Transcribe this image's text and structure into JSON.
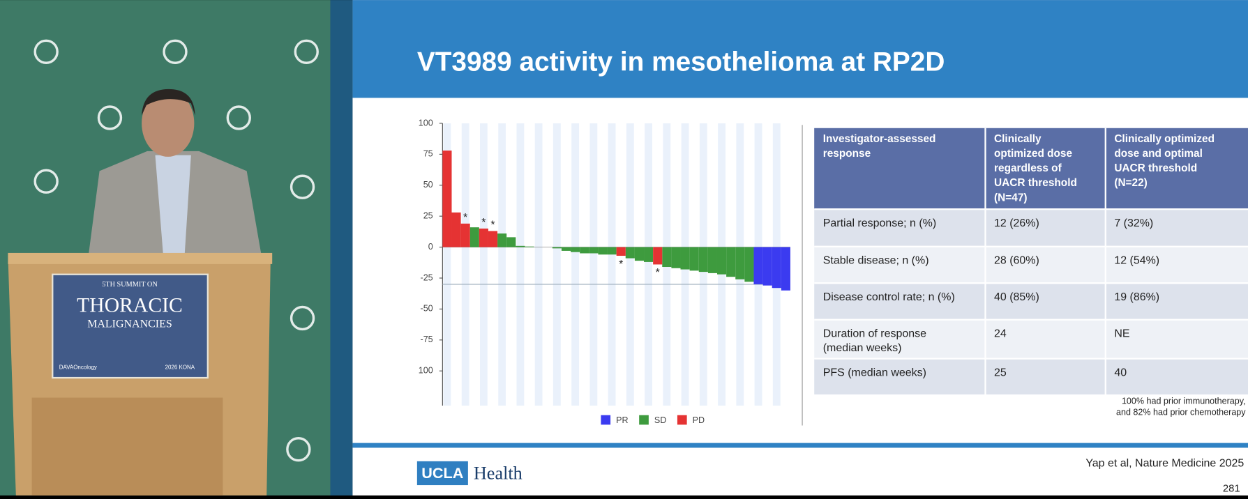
{
  "slide": {
    "title": "VT3989 activity in mesothelioma at RP2D",
    "table": {
      "header": [
        [
          "Investigator-assessed",
          "response"
        ],
        [
          "Clinically",
          "optimized dose",
          "regardless of",
          "UACR threshold",
          "(N=47)"
        ],
        [
          "Clinically optimized",
          "dose and optimal",
          "UACR threshold",
          "(N=22)"
        ]
      ],
      "rows": [
        [
          "Partial response; n (%)",
          "12 (26%)",
          "7 (32%)"
        ],
        [
          "Stable disease; n (%)",
          "28 (60%)",
          "12 (54%)"
        ],
        [
          "Disease control rate; n (%)",
          "40 (85%)",
          "19 (86%)"
        ],
        [
          [
            "Duration of response",
            "(median weeks)"
          ],
          "24",
          "NE"
        ],
        [
          "PFS (median weeks)",
          "25",
          "40"
        ]
      ]
    },
    "footnote": [
      "100% had prior immunotherapy,",
      "and 82% had prior chemotherapy"
    ],
    "citation": "Yap et al, Nature Medicine 2025",
    "page_number": "281",
    "logo": {
      "mark": "UCLA",
      "text": "Health"
    }
  },
  "podium": {
    "line1": "5TH SUMMIT ON",
    "line2": "THORACIC",
    "line3": "MALIGNANCIES",
    "sponsor": "DAVAOncology",
    "event": "2026 KONA"
  },
  "chart_data": {
    "type": "bar",
    "grid": false,
    "ylim": [
      -128,
      100
    ],
    "yticks": [
      100,
      75,
      50,
      25,
      0,
      -25,
      -50,
      -75,
      {
        "value": -100,
        "label": "100"
      }
    ],
    "reference_line": -30,
    "annotations": [
      "*",
      "*",
      "*",
      "*",
      "*"
    ],
    "series": [
      {
        "name": "PR",
        "color": "#3b3bf0",
        "values": [
          null,
          null,
          null,
          null,
          null,
          null,
          null,
          null,
          null,
          null,
          null,
          null,
          null,
          null,
          null,
          null,
          null,
          null,
          null,
          null,
          null,
          null,
          null,
          null,
          null,
          null,
          null,
          null,
          null,
          null,
          null,
          null,
          null,
          null,
          -30,
          -31,
          -33,
          -35
        ]
      },
      {
        "name": "SD",
        "color": "#3e9b3e",
        "values": [
          null,
          null,
          null,
          16,
          null,
          null,
          11,
          8,
          1,
          0.5,
          0,
          0,
          -1,
          -3,
          -4,
          -5,
          -5,
          -6,
          -6,
          null,
          -9,
          -11,
          -12,
          null,
          -16,
          -17,
          -18,
          -19,
          -20,
          -21,
          -22,
          -24,
          -26,
          -28,
          null,
          null,
          null,
          null
        ]
      },
      {
        "name": "PD",
        "color": "#e53333",
        "values": [
          78,
          28,
          19,
          null,
          15,
          13,
          null,
          null,
          null,
          null,
          null,
          null,
          null,
          null,
          null,
          null,
          null,
          null,
          null,
          -7,
          null,
          null,
          null,
          -14,
          null,
          null,
          null,
          null,
          null,
          null,
          null,
          null,
          null,
          null,
          null,
          null,
          null,
          null
        ]
      }
    ]
  }
}
